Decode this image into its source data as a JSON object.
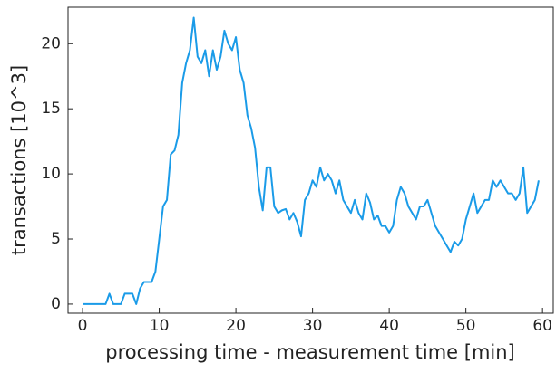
{
  "chart_data": {
    "type": "line",
    "xlabel": "processing time - measurement time [min]",
    "ylabel": "transactions [10^3]",
    "x": [
      0,
      0.5,
      1,
      1.5,
      2,
      2.5,
      3,
      3.5,
      4,
      4.5,
      5,
      5.5,
      6,
      6.5,
      7,
      7.5,
      8,
      8.5,
      9,
      9.5,
      10,
      10.5,
      11,
      11.5,
      12,
      12.5,
      13,
      13.5,
      14,
      14.5,
      15,
      15.5,
      16,
      16.5,
      17,
      17.5,
      18,
      18.5,
      19,
      19.5,
      20,
      20.5,
      21,
      21.5,
      22,
      22.5,
      23,
      23.5,
      24,
      24.5,
      25,
      25.5,
      26,
      26.5,
      27,
      27.5,
      28,
      28.5,
      29,
      29.5,
      30,
      30.5,
      31,
      31.5,
      32,
      32.5,
      33,
      33.5,
      34,
      34.5,
      35,
      35.5,
      36,
      36.5,
      37,
      37.5,
      38,
      38.5,
      39,
      39.5,
      40,
      40.5,
      41,
      41.5,
      42,
      42.5,
      43,
      43.5,
      44,
      44.5,
      45,
      45.5,
      46,
      46.5,
      47,
      47.5,
      48,
      48.5,
      49,
      49.5,
      50,
      50.5,
      51,
      51.5,
      52,
      52.5,
      53,
      53.5,
      54,
      54.5,
      55,
      55.5,
      56,
      56.5,
      57,
      57.5,
      58,
      58.5,
      59,
      59.5
    ],
    "series": [
      {
        "name": "transactions",
        "color": "#1a9be8",
        "values": [
          0,
          0,
          0,
          0,
          0,
          0,
          0,
          0.8,
          0,
          0,
          0,
          0.8,
          0.8,
          0.8,
          0,
          1.2,
          1.7,
          1.7,
          1.7,
          2.5,
          5,
          7.5,
          8,
          11.5,
          11.8,
          13,
          17,
          18.5,
          19.5,
          22,
          19,
          18.5,
          19.5,
          17.5,
          19.5,
          18,
          19,
          21,
          20,
          19.5,
          20.5,
          18,
          17,
          14.5,
          13.5,
          12,
          9,
          7.2,
          10.5,
          10.5,
          7.5,
          7,
          7.2,
          7.3,
          6.5,
          7,
          6.3,
          5.2,
          8,
          8.5,
          9.5,
          9,
          10.5,
          9.5,
          10,
          9.5,
          8.5,
          9.5,
          8,
          7.5,
          7,
          8,
          7,
          6.5,
          8.5,
          7.8,
          6.5,
          6.8,
          6,
          6,
          5.5,
          6,
          8,
          9,
          8.5,
          7.5,
          7,
          6.5,
          7.5,
          7.5,
          8,
          7,
          6,
          5.5,
          5,
          4.5,
          4,
          4.8,
          4.5,
          5,
          6.5,
          7.5,
          8.5,
          7,
          7.5,
          8,
          8,
          9.5,
          9,
          9.5,
          9,
          8.5,
          8.5,
          8,
          8.5,
          10.5,
          7,
          7.5,
          8,
          9.5
        ]
      }
    ],
    "xlim": [
      -1.9,
      61.4
    ],
    "ylim": [
      -0.7,
      22.8
    ],
    "xticks": [
      0,
      10,
      20,
      30,
      40,
      50,
      60
    ],
    "yticks": [
      0,
      5,
      10,
      15,
      20
    ]
  }
}
